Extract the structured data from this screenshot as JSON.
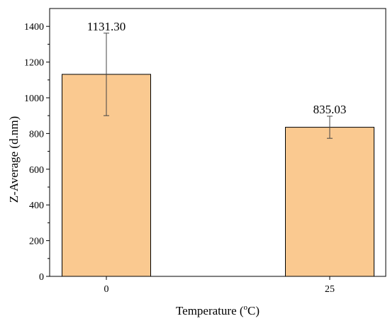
{
  "chart_data": {
    "type": "bar",
    "categories": [
      "0",
      "25"
    ],
    "values": [
      1131.3,
      835.03
    ],
    "value_labels": [
      "1131.30",
      "835.03"
    ],
    "error_bars": [
      {
        "low": 900,
        "high": 1362
      },
      {
        "low": 773,
        "high": 897
      }
    ],
    "xlabel_main": "Temperature (",
    "xlabel_sup": "o",
    "xlabel_end": "C)",
    "ylabel": "Z-Average (d.nm)",
    "ylim": [
      0,
      1500
    ],
    "yticks": [
      0,
      200,
      400,
      600,
      800,
      1000,
      1200,
      1400
    ],
    "yticks_minor": [
      100,
      300,
      500,
      700,
      900,
      1100,
      1300
    ],
    "grid": false,
    "colors": {
      "bar_fill": "#FAC990",
      "bar_stroke": "#000000",
      "axis": "#000000",
      "error_bar": "#444444"
    }
  }
}
